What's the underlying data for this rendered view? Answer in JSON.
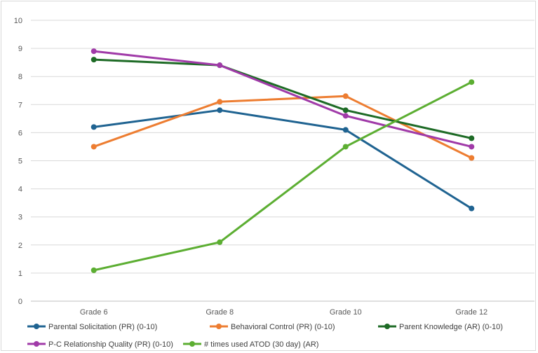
{
  "chart_data": {
    "type": "line",
    "title": "",
    "xlabel": "",
    "ylabel": "",
    "categories": [
      "Grade 6",
      "Grade 8",
      "Grade 10",
      "Grade 12"
    ],
    "ylim": [
      0,
      10
    ],
    "yticks": [
      0,
      1,
      2,
      3,
      4,
      5,
      6,
      7,
      8,
      9,
      10
    ],
    "grid": true,
    "legend_position": "bottom",
    "series": [
      {
        "name": "Parental Solicitation (PR) (0-10)",
        "color": "#1f6391",
        "values": [
          6.2,
          6.8,
          6.1,
          3.3
        ]
      },
      {
        "name": "Behavioral Control  (PR) (0-10)",
        "color": "#ed7d31",
        "values": [
          5.5,
          7.1,
          7.3,
          5.1
        ]
      },
      {
        "name": "Parent Knowledge (AR) (0-10)",
        "color": "#1e6b26",
        "values": [
          8.6,
          8.4,
          6.8,
          5.8
        ]
      },
      {
        "name": "P-C Relationship Quality (PR) (0-10)",
        "color": "#a03aa8",
        "values": [
          8.9,
          8.4,
          6.6,
          5.5
        ]
      },
      {
        "name": "# times used ATOD (30 day) (AR)",
        "color": "#5cae32",
        "values": [
          1.1,
          2.1,
          5.5,
          7.8
        ]
      }
    ]
  }
}
